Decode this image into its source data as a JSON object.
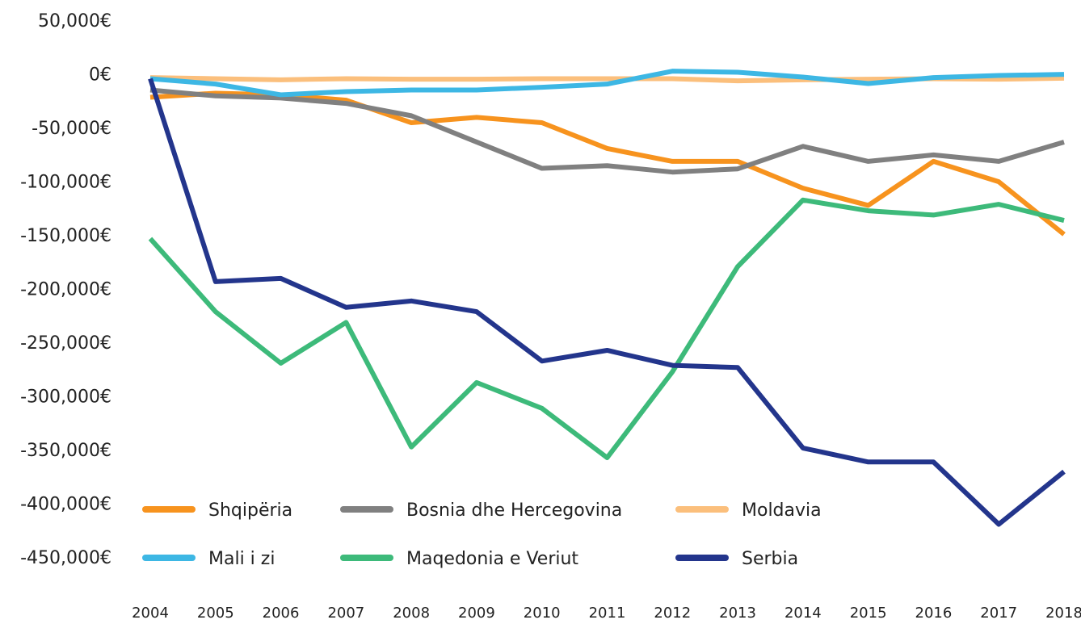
{
  "chart_data": {
    "type": "line",
    "categories": [
      "2004",
      "2005",
      "2006",
      "2007",
      "2008",
      "2009",
      "2010",
      "2011",
      "2012",
      "2013",
      "2014",
      "2015",
      "2016",
      "2017",
      "2018"
    ],
    "series": [
      {
        "name": "Shqipëria",
        "color": "#f7931e",
        "values": [
          -20300,
          -16500,
          -18000,
          -23000,
          -44000,
          -39000,
          -44000,
          -68000,
          -80000,
          -80000,
          -105000,
          -121000,
          -80000,
          -99000,
          -148000
        ]
      },
      {
        "name": "Bosnia dhe Hercegovina",
        "color": "#808080",
        "values": [
          -13500,
          -19000,
          -21000,
          -26000,
          -37500,
          -62000,
          -86500,
          -84000,
          -90000,
          -87000,
          -66000,
          -80000,
          -74000,
          -80000,
          -62000
        ]
      },
      {
        "name": "Moldavia",
        "color": "#fbbf7c",
        "values": [
          -2000,
          -3000,
          -4000,
          -3000,
          -3500,
          -3500,
          -3000,
          -3000,
          -3000,
          -5000,
          -4000,
          -3500,
          -3000,
          -3500,
          -2500
        ]
      },
      {
        "name": "Mali i zi",
        "color": "#3db7e4",
        "values": [
          -3000,
          -8000,
          -18000,
          -15000,
          -13500,
          -13500,
          -11000,
          -8000,
          4000,
          3000,
          -1500,
          -7500,
          -2000,
          0,
          1000
        ]
      },
      {
        "name": "Maqedonia e Veriut",
        "color": "#3dba7a",
        "values": [
          -152000,
          -220000,
          -268000,
          -230000,
          -346000,
          -286000,
          -310000,
          -356000,
          -276000,
          -178000,
          -116000,
          -126000,
          -130000,
          -120000,
          -135000
        ]
      },
      {
        "name": "Serbia",
        "color": "#23358c",
        "values": [
          -3000,
          -192000,
          -189000,
          -216000,
          -210000,
          -220000,
          -266000,
          -256000,
          -270000,
          -272000,
          -347000,
          -360000,
          -360000,
          -418000,
          -369000
        ]
      }
    ],
    "ylim": [
      -450000,
      50000
    ],
    "yticks": [
      {
        "value": 50000,
        "label": "50,000€"
      },
      {
        "value": 0,
        "label": "0€"
      },
      {
        "value": -50000,
        "label": "-50,000€"
      },
      {
        "value": -100000,
        "label": "-100,000€"
      },
      {
        "value": -150000,
        "label": "-150,000€"
      },
      {
        "value": -200000,
        "label": "-200,000€"
      },
      {
        "value": -250000,
        "label": "-250,000€"
      },
      {
        "value": -300000,
        "label": "-300,000€"
      },
      {
        "value": -350000,
        "label": "-350,000€"
      },
      {
        "value": -400000,
        "label": "-400,000€"
      },
      {
        "value": -450000,
        "label": "-450,000€"
      }
    ],
    "grid": false,
    "legend": "lower left"
  }
}
